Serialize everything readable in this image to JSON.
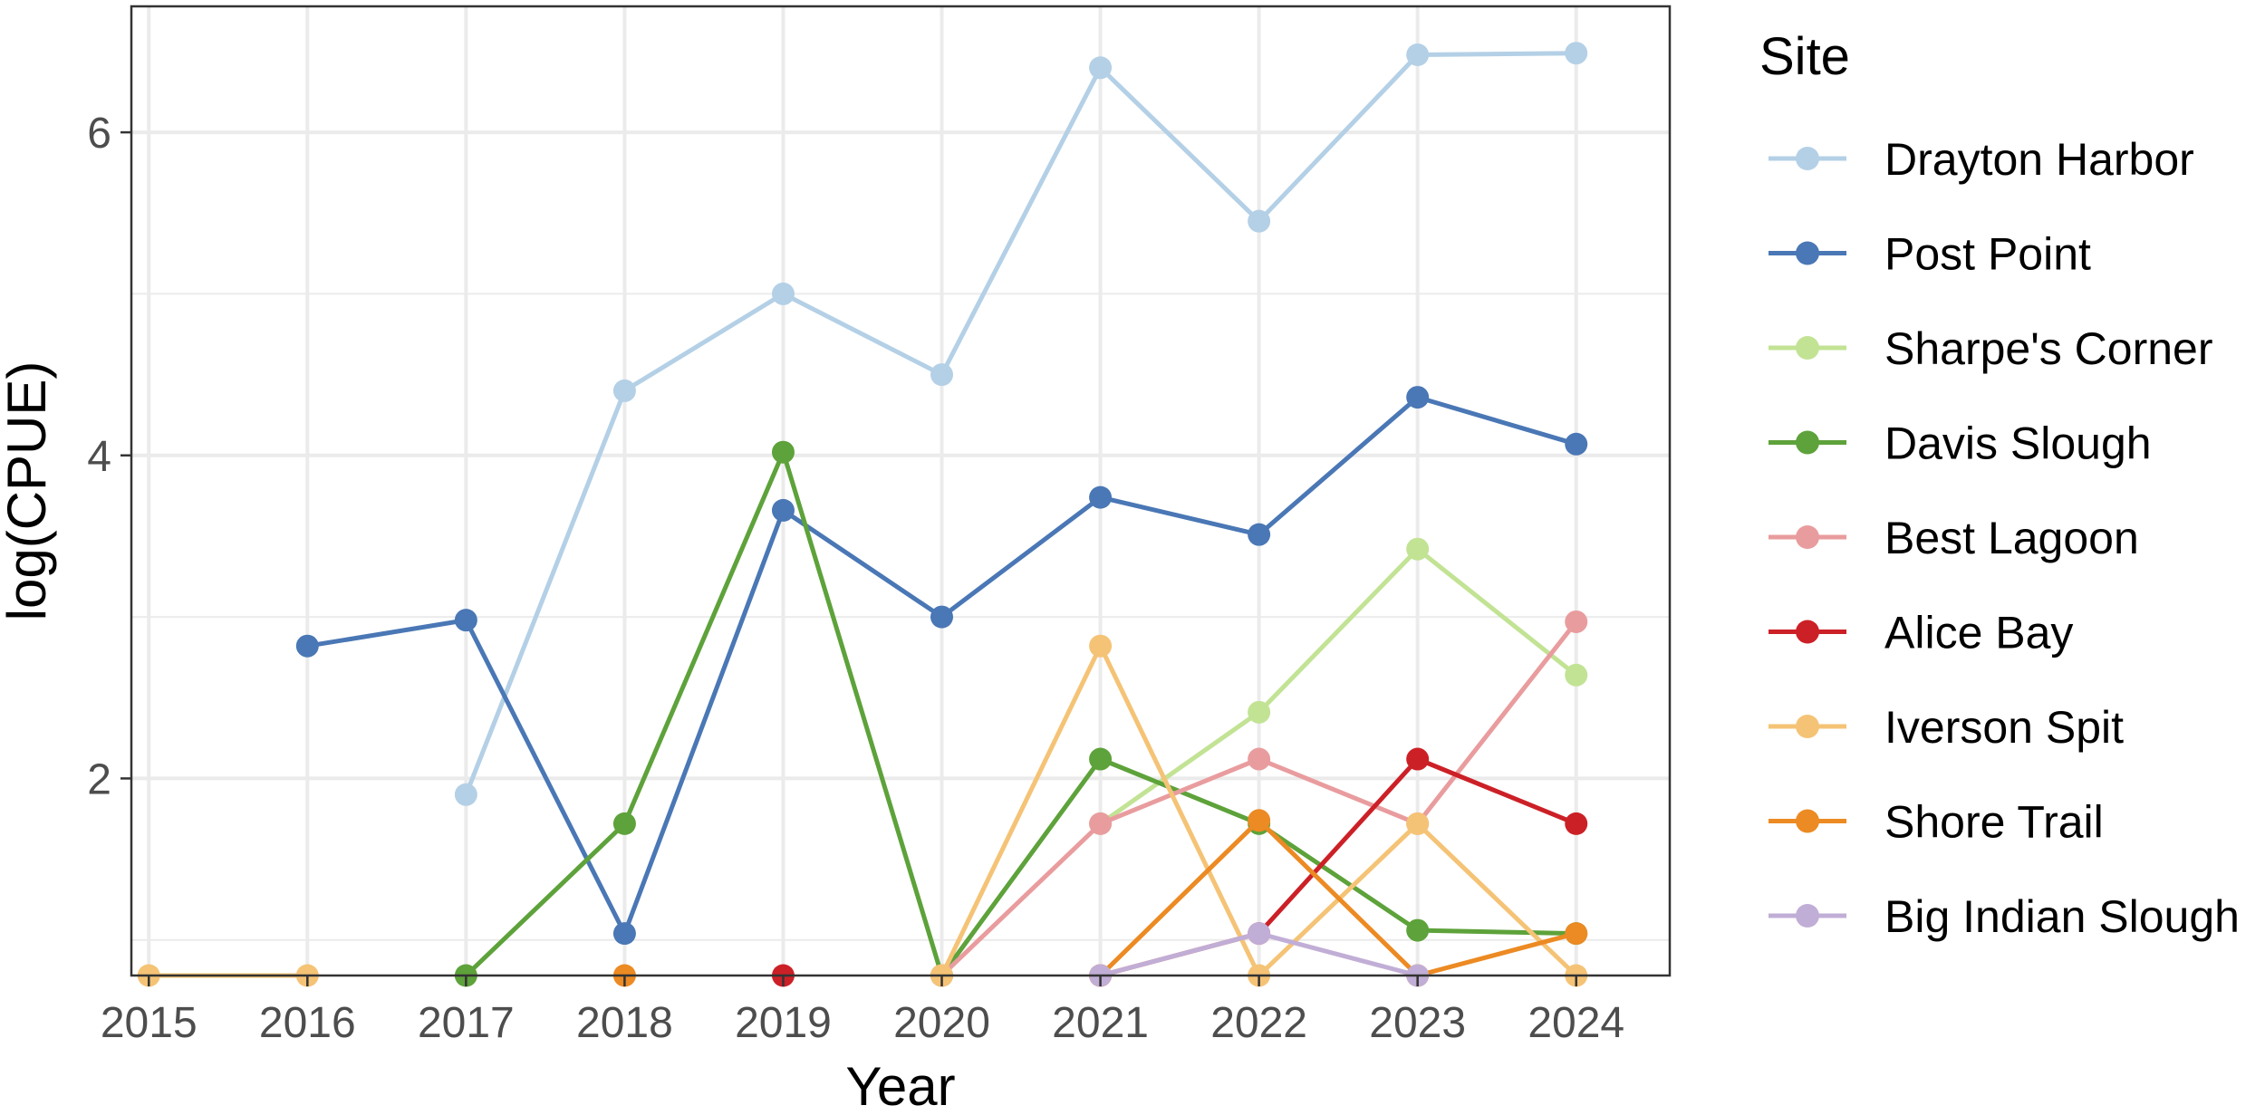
{
  "chart_data": {
    "type": "line",
    "title": "",
    "xlabel": "Year",
    "ylabel": "log(CPUE)",
    "x": [
      2015,
      2016,
      2017,
      2018,
      2019,
      2020,
      2021,
      2022,
      2023,
      2024
    ],
    "x_tick_labels": [
      "2015",
      "2016",
      "2017",
      "2018",
      "2019",
      "2020",
      "2021",
      "2022",
      "2023",
      "2024"
    ],
    "y_ticks": [
      2,
      4,
      6
    ],
    "y_tick_labels": [
      "2",
      "4",
      "6"
    ],
    "xlim": [
      2014.89,
      2024.59
    ],
    "ylim": [
      0.78,
      6.78
    ],
    "grid": true,
    "legend_title": "Site",
    "legend_position": "right",
    "series": [
      {
        "name": "Drayton Harbor",
        "color": "#b4d0e6",
        "values": [
          null,
          null,
          1.9,
          4.4,
          5.0,
          4.5,
          6.4,
          5.45,
          6.48,
          6.49
        ]
      },
      {
        "name": "Post Point",
        "color": "#4a77b5",
        "values": [
          null,
          2.82,
          2.98,
          1.04,
          3.66,
          3.0,
          3.74,
          3.51,
          4.36,
          4.07
        ]
      },
      {
        "name": "Sharpe's Corner",
        "color": "#c2e394",
        "values": [
          null,
          null,
          null,
          null,
          null,
          null,
          1.72,
          2.41,
          3.42,
          2.64
        ]
      },
      {
        "name": "Davis Slough",
        "color": "#5da23a",
        "values": [
          null,
          null,
          0.78,
          1.72,
          4.02,
          0.78,
          2.12,
          1.72,
          1.06,
          1.04
        ]
      },
      {
        "name": "Best Lagoon",
        "color": "#e99c9e",
        "values": [
          null,
          null,
          null,
          null,
          null,
          0.78,
          1.72,
          2.12,
          1.72,
          2.97
        ]
      },
      {
        "name": "Alice Bay",
        "color": "#cc2027",
        "values": [
          null,
          null,
          null,
          null,
          0.78,
          null,
          0.78,
          1.04,
          2.12,
          1.72
        ]
      },
      {
        "name": "Iverson Spit",
        "color": "#f5c376",
        "values": [
          0.78,
          0.78,
          null,
          null,
          null,
          0.78,
          2.82,
          0.78,
          1.72,
          0.78
        ]
      },
      {
        "name": "Shore Trail",
        "color": "#ec8a23",
        "values": [
          null,
          null,
          null,
          0.78,
          null,
          null,
          0.78,
          1.74,
          0.78,
          1.04
        ]
      },
      {
        "name": "Big Indian Slough",
        "color": "#c1aed6",
        "values": [
          null,
          null,
          null,
          null,
          null,
          null,
          0.78,
          1.04,
          0.78,
          null
        ]
      }
    ]
  }
}
